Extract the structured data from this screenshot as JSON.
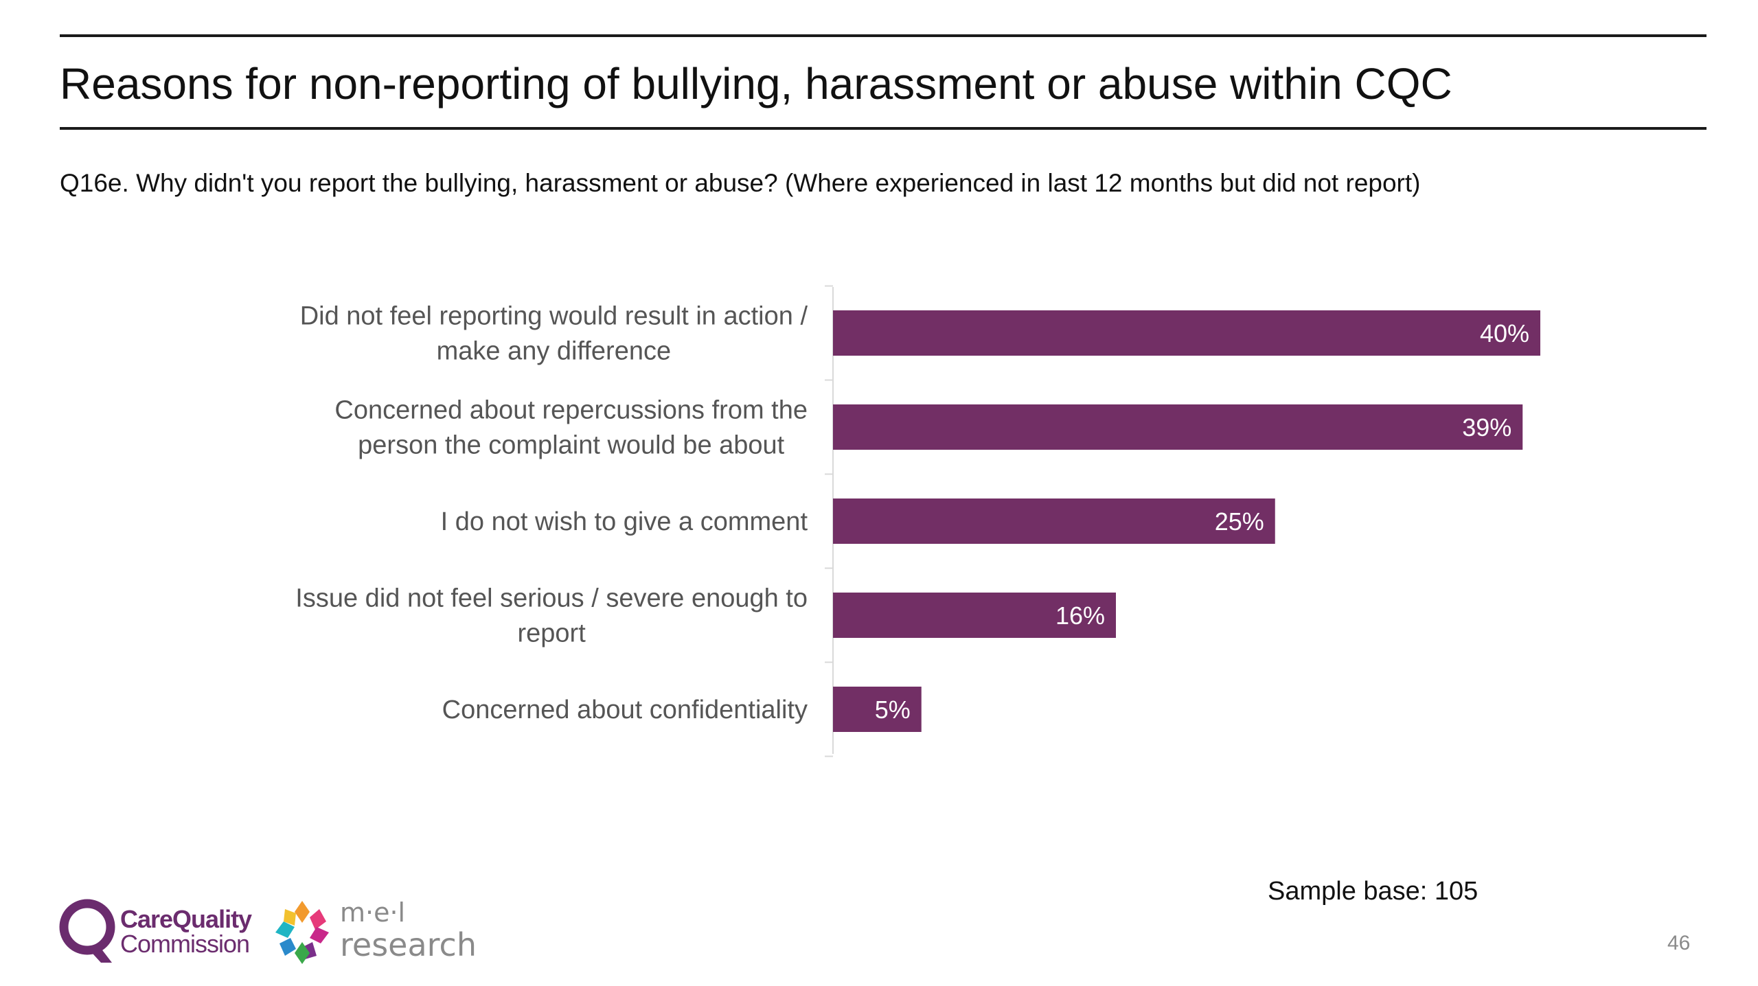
{
  "header": {
    "title": "Reasons for non-reporting of bullying, harassment or abuse within CQC",
    "subtitle": "Q16e. Why didn't you report the bullying, harassment or abuse? (Where experienced in last 12 months but did not report)"
  },
  "chart_data": {
    "type": "bar",
    "orientation": "horizontal",
    "categories": [
      [
        "Did not feel reporting would result in action /",
        "make any difference"
      ],
      [
        "Concerned about repercussions from the",
        "person the complaint would be about"
      ],
      [
        "I do not wish to give a comment"
      ],
      [
        "Issue did not feel serious / severe enough to",
        "report"
      ],
      [
        "Concerned about confidentiality"
      ]
    ],
    "values": [
      40,
      39,
      25,
      16,
      5
    ],
    "value_labels": [
      "40%",
      "39%",
      "25%",
      "16%",
      "5%"
    ],
    "bar_color": "#722f65",
    "label_color": "#ffffff",
    "grid": false,
    "legend": "none"
  },
  "footer": {
    "sample_base": "Sample base: 105",
    "page_number": "46",
    "logos": {
      "cqc_line1": "CareQuality",
      "cqc_line2": "Commission",
      "mel_line1": "m·e·l",
      "mel_line2": "research"
    }
  },
  "colors": {
    "accent": "#722f65",
    "text": "#1a1a1a",
    "muted": "#8a8a8a"
  }
}
